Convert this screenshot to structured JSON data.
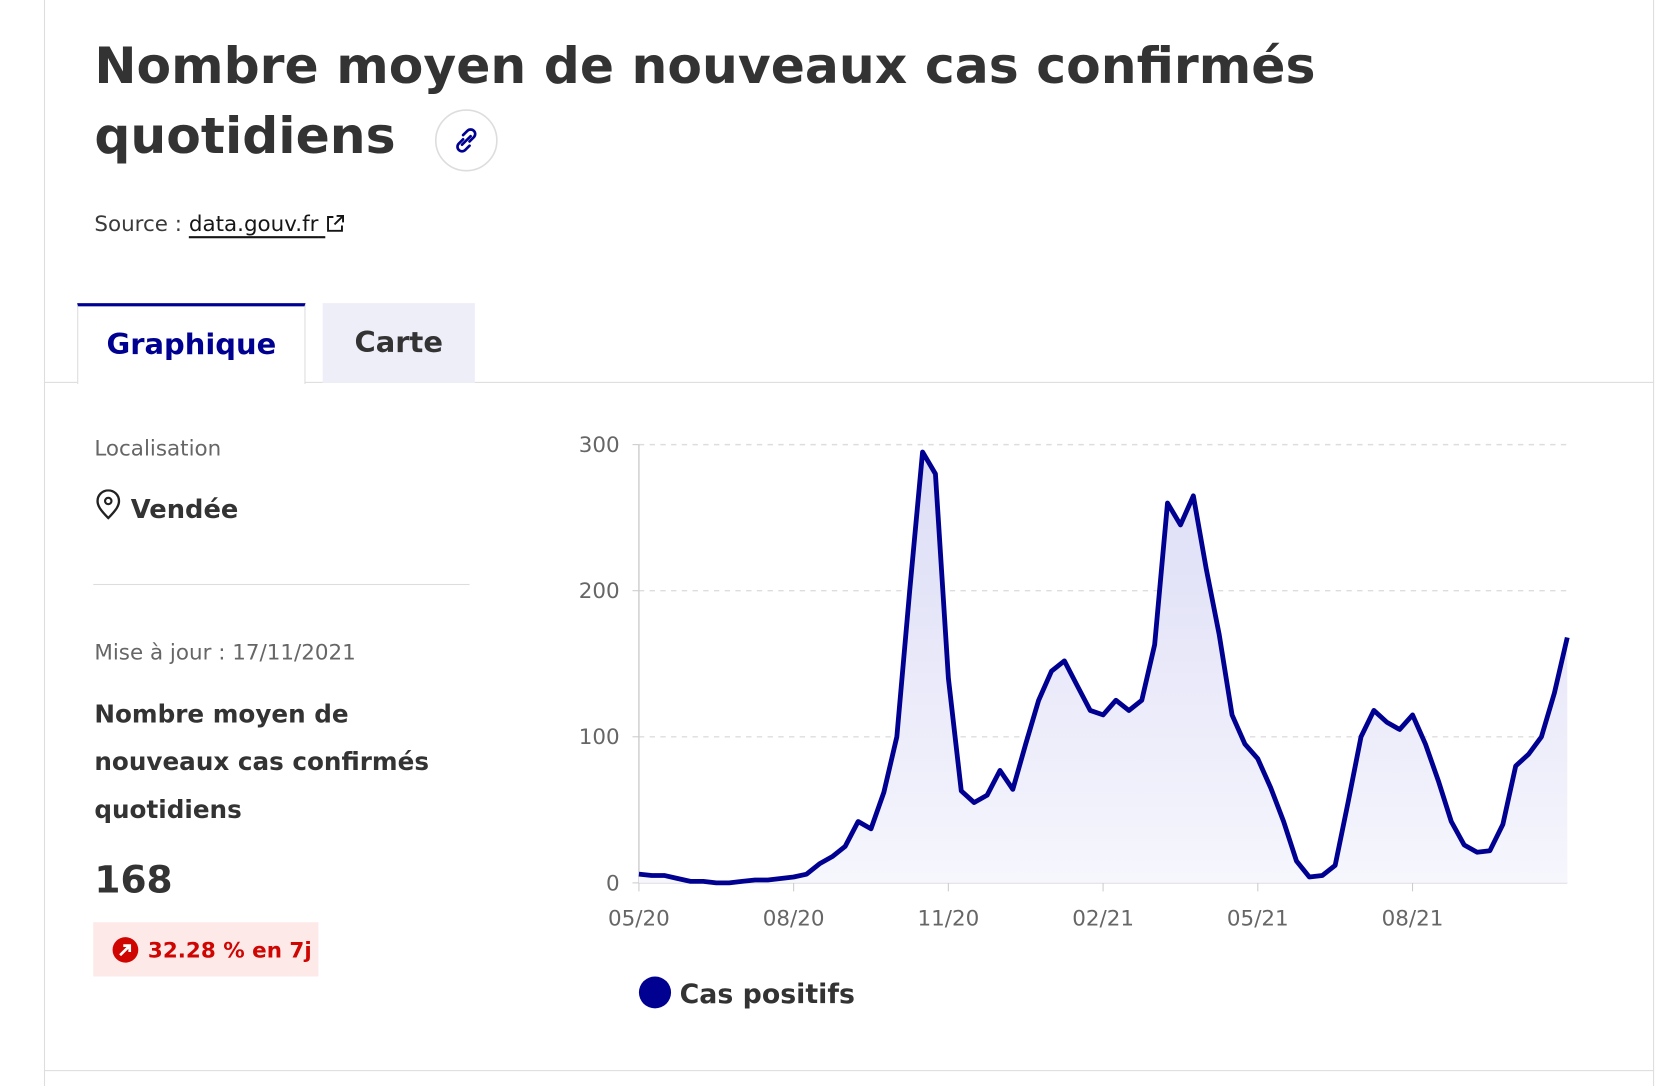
{
  "header": {
    "title": "Nombre moyen de nouveaux cas confirmés quotidiens",
    "source_label": "Source :",
    "source_link": "data.gouv.fr"
  },
  "tabs": [
    "Graphique",
    "Carte"
  ],
  "sidebar": {
    "location_label": "Localisation",
    "location": "Vendée",
    "updated": "Mise à jour : 17/11/2021",
    "indicator": "Nombre moyen de nouveaux cas confirmés quotidiens",
    "value": 168,
    "change": "32.28 % en 7j"
  },
  "chart_data": {
    "type": "line",
    "categories": [
      "05/20",
      null,
      null,
      null,
      null,
      null,
      null,
      null,
      null,
      null,
      null,
      null,
      "08/20",
      null,
      null,
      null,
      null,
      null,
      null,
      null,
      null,
      null,
      null,
      null,
      "11/20",
      null,
      null,
      null,
      null,
      null,
      null,
      null,
      null,
      null,
      null,
      null,
      "02/21",
      null,
      null,
      null,
      null,
      null,
      null,
      null,
      null,
      null,
      null,
      null,
      "05/21",
      null,
      null,
      null,
      null,
      null,
      null,
      null,
      null,
      null,
      null,
      null,
      "08/21",
      null,
      null,
      null,
      null,
      null,
      null,
      null,
      null,
      null,
      null,
      null,
      null
    ],
    "series": [
      {
        "name": "Cas positifs",
        "color": "#000091",
        "values": [
          6,
          5,
          5,
          3,
          1,
          1,
          0,
          0,
          1,
          2,
          2,
          3,
          4,
          6,
          13,
          18,
          25,
          42,
          37,
          62,
          100,
          200,
          295,
          280,
          140,
          63,
          55,
          60,
          77,
          64,
          95,
          125,
          145,
          152,
          135,
          118,
          115,
          125,
          118,
          125,
          163,
          260,
          245,
          265,
          215,
          170,
          115,
          95,
          85,
          65,
          42,
          15,
          4,
          5,
          12,
          55,
          100,
          118,
          110,
          105,
          115,
          95,
          70,
          42,
          26,
          21,
          22,
          40,
          80,
          88,
          100,
          130,
          168
        ]
      }
    ],
    "ylim": [
      0,
      300
    ],
    "yticks": [
      0,
      100,
      200,
      300
    ],
    "grid": true
  }
}
